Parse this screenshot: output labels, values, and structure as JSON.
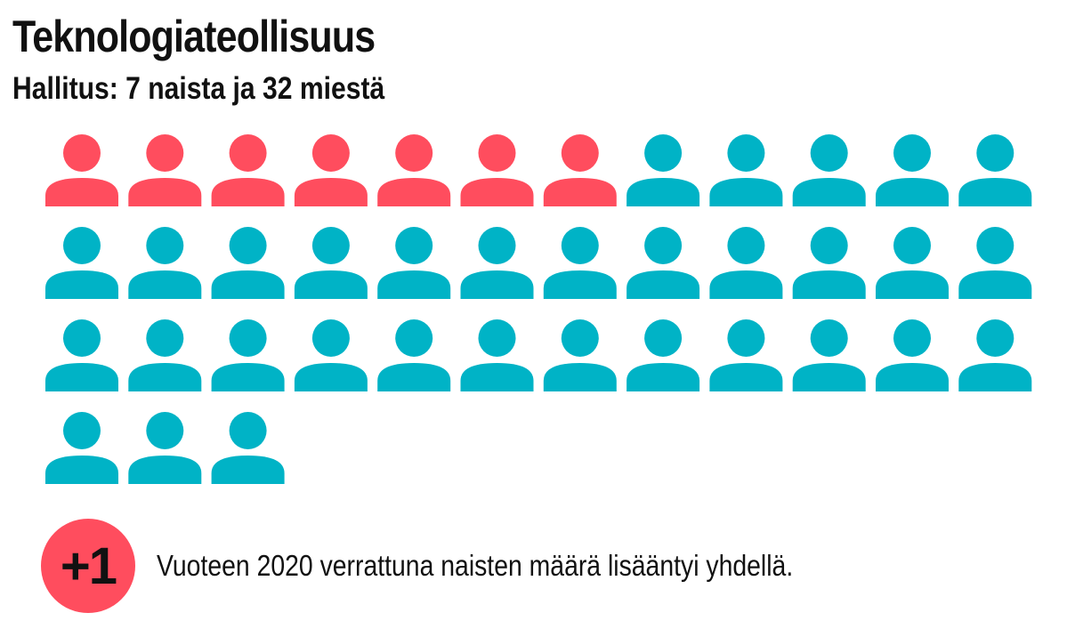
{
  "chart_data": {
    "type": "icon-array",
    "title": "Teknologiateollisuus",
    "subtitle": "Hallitus: 7 naista ja 32 miestä",
    "series": [
      {
        "name": "naista",
        "value": 7,
        "color": "#ff4d5e"
      },
      {
        "name": "miestä",
        "value": 32,
        "color": "#00b3c6"
      }
    ],
    "icons_per_row": 12,
    "icon": "person-icon"
  },
  "note": {
    "badge": "+1",
    "badge_color": "#ff4d5e",
    "text": "Vuoteen 2020 verrattuna naisten määrä lisääntyi yhdellä."
  }
}
